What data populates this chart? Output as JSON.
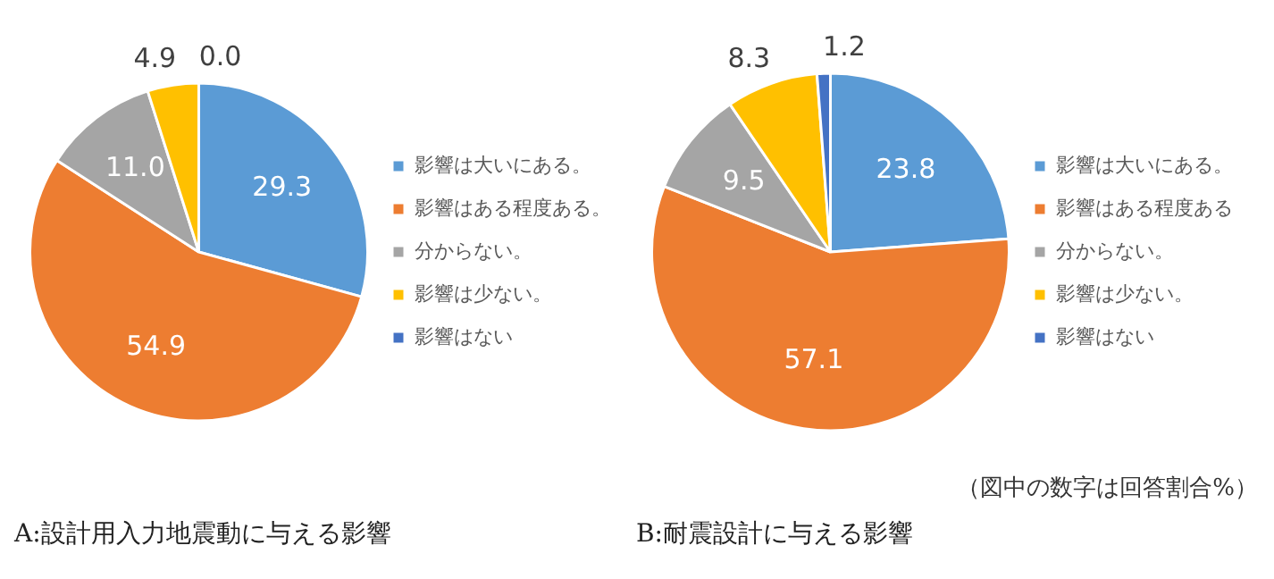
{
  "chart_data": [
    {
      "type": "pie",
      "title": "A:設計用入力地震動に与える影響",
      "categories": [
        "影響は大いにある。",
        "影響はある程度ある。",
        "分からない。",
        "影響は少ない。",
        "影響はない"
      ],
      "values": [
        29.3,
        54.9,
        11.0,
        4.9,
        0.0
      ],
      "value_labels": [
        "29.3",
        "54.9",
        "11.0",
        "4.9",
        "0.0"
      ],
      "colors": [
        "#5b9bd5",
        "#ed7d31",
        "#a5a5a5",
        "#ffc000",
        "#4472c4"
      ],
      "legend": "right"
    },
    {
      "type": "pie",
      "title": "B:耐震設計に与える影響",
      "categories": [
        "影響は大いにある。",
        "影響はある程度ある",
        "分からない。",
        "影響は少ない。",
        "影響はない"
      ],
      "values": [
        23.8,
        57.1,
        9.5,
        8.3,
        1.2
      ],
      "value_labels": [
        "23.8",
        "57.1",
        "9.5",
        "8.3",
        "1.2"
      ],
      "colors": [
        "#5b9bd5",
        "#ed7d31",
        "#a5a5a5",
        "#ffc000",
        "#4472c4"
      ],
      "legend": "right",
      "annotations": [
        "（図中の数字は回答割合%）"
      ]
    }
  ]
}
